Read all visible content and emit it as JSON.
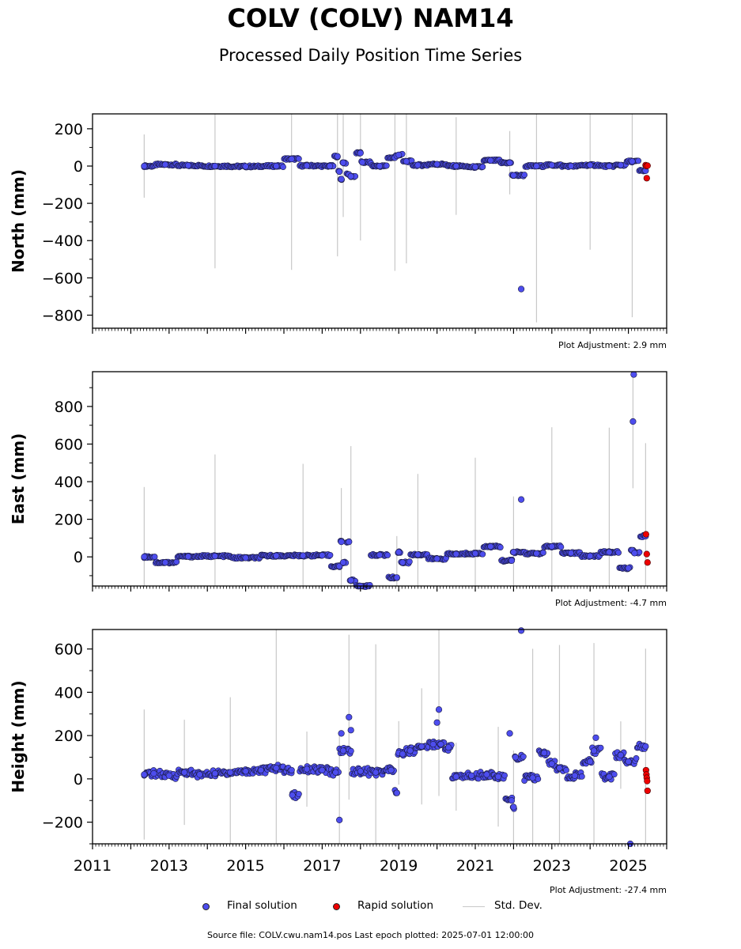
{
  "title": "COLV (COLV) NAM14",
  "subtitle": "Processed Daily Position Time Series",
  "footer": "Source file: COLV.cwu.nam14.pos  Last epoch plotted: 2025-07-01 12:00:00",
  "legend": {
    "final": "Final solution",
    "rapid": "Rapid solution",
    "std": "Std. Dev."
  },
  "colors": {
    "final": "#4d4dee",
    "final_edge": "#1a1a40",
    "rapid": "#ee0000",
    "std": "#c8c8c8"
  },
  "chart_data": [
    {
      "type": "scatter",
      "ylabel": "North (mm)",
      "adjustment": "Plot Adjustment: 2.9 mm",
      "xlim": [
        2011,
        2026
      ],
      "ylim": [
        -870,
        280
      ],
      "yticks": [
        200,
        0,
        -200,
        -400,
        -600,
        -800
      ],
      "series": [
        {
          "name": "Final solution",
          "x": [
            2012.35,
            2012.9,
            2013.5,
            2014.2,
            2015.0,
            2015.8,
            2016.2,
            2016.6,
            2017.2,
            2017.4,
            2017.45,
            2017.5,
            2017.55,
            2017.7,
            2017.75,
            2018.0,
            2018.05,
            2018.5,
            2018.9,
            2018.95,
            2019.0,
            2019.2,
            2019.5,
            2020.0,
            2020.5,
            2021.0,
            2021.4,
            2021.9,
            2022.0,
            2022.2,
            2022.6,
            2023.0,
            2023.5,
            2024.0,
            2024.5,
            2024.8,
            2025.1,
            2025.45
          ],
          "y": [
            0,
            8,
            3,
            0,
            -2,
            0,
            38,
            2,
            0,
            52,
            -30,
            -70,
            18,
            -45,
            -55,
            70,
            20,
            0,
            45,
            55,
            60,
            25,
            5,
            10,
            0,
            -5,
            30,
            18,
            -50,
            -660,
            0,
            5,
            0,
            5,
            0,
            5,
            25,
            -25
          ]
        },
        {
          "name": "Rapid solution",
          "x": [
            2025.45,
            2025.47,
            2025.48,
            2025.5
          ],
          "y": [
            5,
            0,
            -65,
            2
          ]
        }
      ]
    },
    {
      "type": "scatter",
      "ylabel": "East (mm)",
      "adjustment": "Plot Adjustment: -4.7 mm",
      "xlim": [
        2011,
        2026
      ],
      "ylim": [
        -155,
        985
      ],
      "yticks": [
        800,
        600,
        400,
        200,
        0
      ],
      "series": [
        {
          "name": "Final solution",
          "x": [
            2012.35,
            2012.9,
            2013.5,
            2014.2,
            2015.0,
            2015.8,
            2016.5,
            2017.0,
            2017.45,
            2017.5,
            2017.55,
            2017.7,
            2017.75,
            2018.0,
            2018.5,
            2018.95,
            2019.0,
            2019.1,
            2019.5,
            2020.0,
            2020.5,
            2021.0,
            2021.4,
            2021.95,
            2022.0,
            2022.2,
            2022.6,
            2023.0,
            2023.5,
            2024.0,
            2024.5,
            2025.0,
            2025.1,
            2025.12,
            2025.14,
            2025.16,
            2025.45
          ],
          "y": [
            0,
            -30,
            2,
            4,
            -5,
            6,
            7,
            8,
            -50,
            80,
            -30,
            80,
            -125,
            -155,
            10,
            -110,
            25,
            -30,
            12,
            -10,
            15,
            18,
            55,
            -20,
            25,
            305,
            18,
            55,
            20,
            5,
            25,
            -60,
            35,
            720,
            970,
            20,
            110
          ]
        },
        {
          "name": "Rapid solution",
          "x": [
            2025.46,
            2025.48,
            2025.5
          ],
          "y": [
            120,
            15,
            -30
          ]
        }
      ]
    },
    {
      "type": "scatter",
      "ylabel": "Height (mm)",
      "adjustment": "Plot Adjustment: -27.4 mm",
      "xlim": [
        2011,
        2026
      ],
      "ylim": [
        -300,
        690
      ],
      "yticks": [
        600,
        400,
        200,
        0,
        -200
      ],
      "xticks": [
        2011,
        2013,
        2015,
        2017,
        2019,
        2021,
        2023,
        2025
      ],
      "series": [
        {
          "name": "Final solution",
          "x": [
            2012.35,
            2012.6,
            2013.0,
            2013.4,
            2013.8,
            2014.2,
            2014.6,
            2015.0,
            2015.4,
            2015.8,
            2016.2,
            2016.22,
            2016.6,
            2017.0,
            2017.35,
            2017.45,
            2017.5,
            2017.55,
            2017.7,
            2017.75,
            2018.0,
            2018.4,
            2018.8,
            2018.95,
            2019.0,
            2019.1,
            2019.3,
            2019.6,
            2019.9,
            2020.0,
            2020.05,
            2020.1,
            2020.3,
            2020.5,
            2020.9,
            2021.3,
            2021.6,
            2021.9,
            2021.95,
            2022.0,
            2022.05,
            2022.2,
            2022.5,
            2022.8,
            2023.0,
            2023.2,
            2023.6,
            2024.0,
            2024.1,
            2024.15,
            2024.5,
            2024.8,
            2025.0,
            2025.05,
            2025.45
          ],
          "y": [
            20,
            25,
            15,
            30,
            20,
            25,
            30,
            35,
            40,
            50,
            40,
            -75,
            45,
            40,
            30,
            -190,
            210,
            130,
            285,
            225,
            35,
            30,
            40,
            -65,
            120,
            115,
            130,
            150,
            160,
            260,
            320,
            160,
            145,
            10,
            15,
            20,
            10,
            210,
            -100,
            -130,
            100,
            685,
            5,
            120,
            70,
            50,
            15,
            80,
            130,
            190,
            10,
            110,
            80,
            -300,
            150
          ]
        },
        {
          "name": "Rapid solution",
          "x": [
            2025.46,
            2025.47,
            2025.48,
            2025.49,
            2025.5
          ],
          "y": [
            40,
            20,
            5,
            -10,
            -55
          ]
        }
      ]
    }
  ]
}
